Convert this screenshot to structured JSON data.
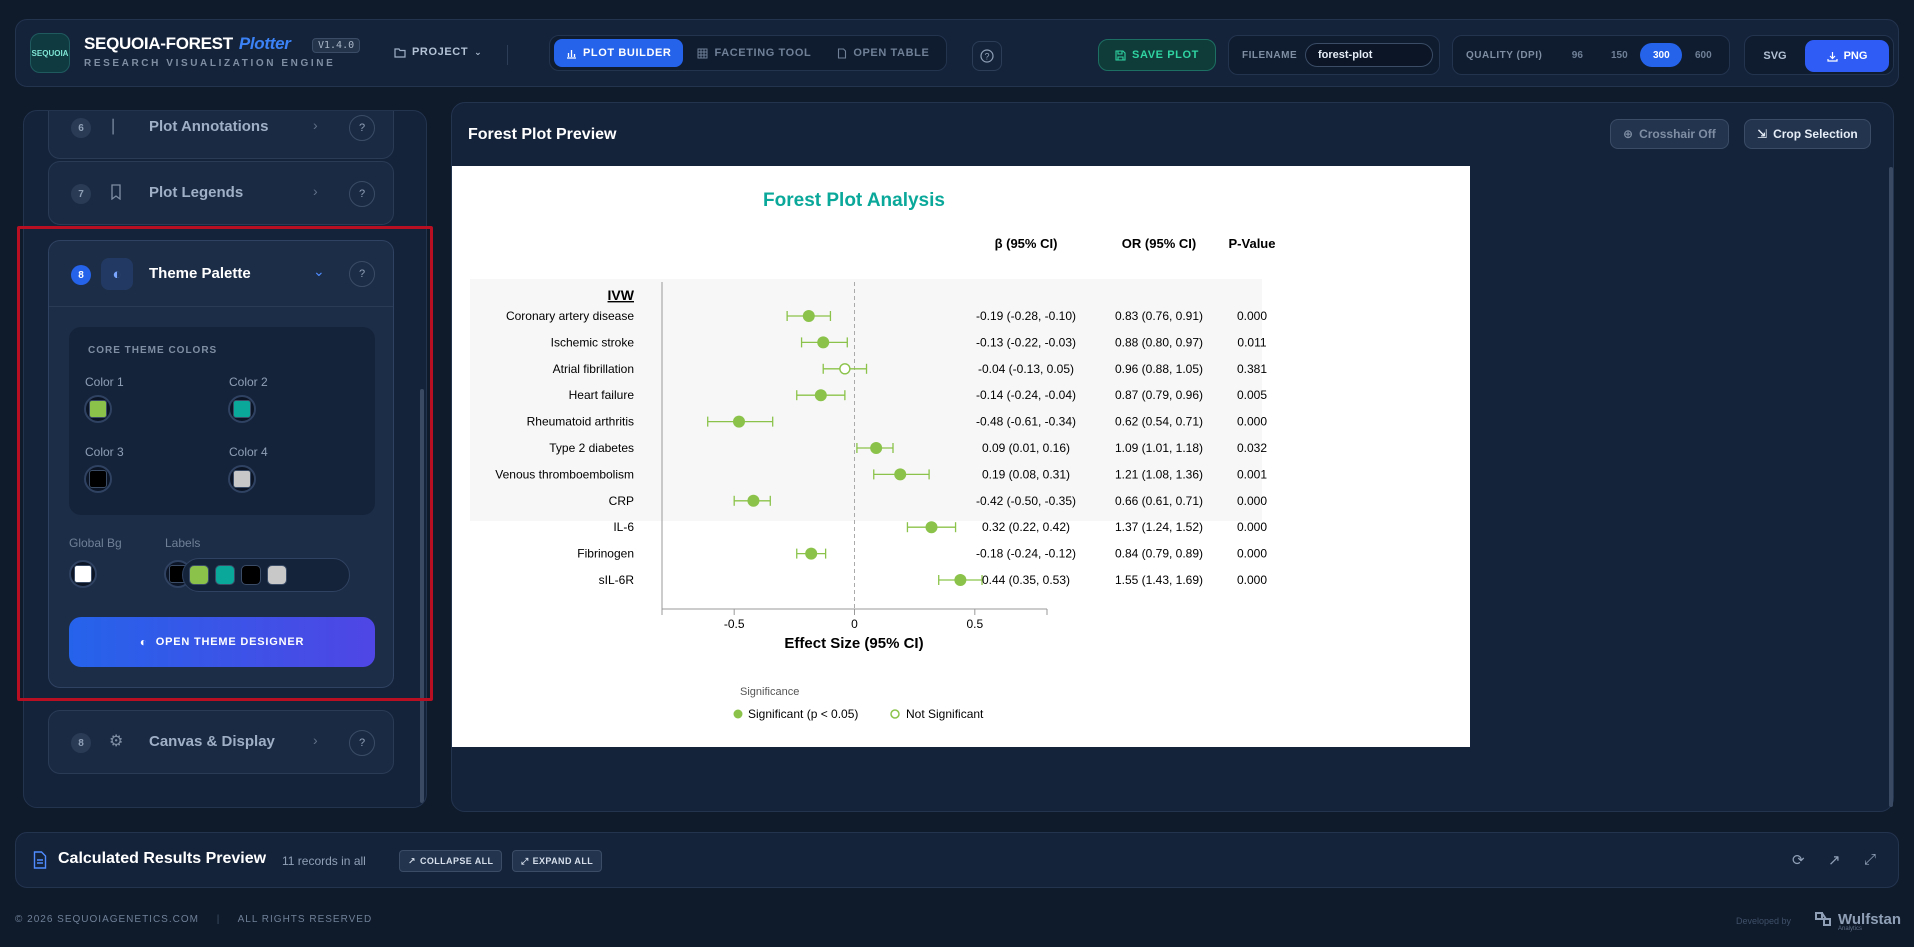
{
  "header": {
    "logo_text": "SEQUOIA",
    "brand": "SEQUOIA-FOREST",
    "brand_accent": "Plotter",
    "version": "V1.4.0",
    "subtitle": "RESEARCH VISUALIZATION ENGINE",
    "project_label": "PROJECT",
    "tabs": [
      {
        "label": "PLOT BUILDER",
        "icon": "bar-chart-icon",
        "active": true
      },
      {
        "label": "FACETING TOOL",
        "icon": "grid-icon",
        "active": false
      },
      {
        "label": "OPEN TABLE",
        "icon": "document-icon",
        "active": false
      }
    ],
    "save_label": "SAVE PLOT",
    "filename_label": "FILENAME",
    "filename_value": "forest-plot",
    "quality_label": "QUALITY (DPI)",
    "quality_options": [
      "96",
      "150",
      "300",
      "600"
    ],
    "quality_selected": "300",
    "format_svg": "SVG",
    "format_png": "PNG"
  },
  "sidebar": {
    "items": [
      {
        "number": "6",
        "label": "Plot Annotations"
      },
      {
        "number": "7",
        "label": "Plot Legends"
      },
      {
        "number": "8",
        "label": "Theme Palette"
      },
      {
        "number": "8",
        "label": "Canvas & Display"
      }
    ],
    "theme_palette": {
      "core_caption": "CORE THEME COLORS",
      "colors": [
        {
          "label": "Color 1",
          "value": "#8bc34a"
        },
        {
          "label": "Color 2",
          "value": "#0aa89a"
        },
        {
          "label": "Color 3",
          "value": "#000000"
        },
        {
          "label": "Color 4",
          "value": "#c8c8c8"
        }
      ],
      "global_bg_label": "Global Bg",
      "global_bg_value": "#ffffff",
      "labels_label": "Labels",
      "labels_value": "#000000",
      "open_designer_label": "OPEN THEME DESIGNER"
    }
  },
  "preview": {
    "title": "Forest Plot Preview",
    "crosshair_label": "Crosshair Off",
    "crop_label": "Crop Selection"
  },
  "chart_data": {
    "type": "scatter",
    "title": "Forest Plot Analysis",
    "group_label": "IVW",
    "xlabel": "Effect Size (95% CI)",
    "xticks": [
      -0.5,
      0,
      0.5
    ],
    "xtick_labels": [
      "-0.5",
      "0",
      "0.5"
    ],
    "xlim": [
      -0.8,
      0.8
    ],
    "reference_line": 0,
    "column_headers": {
      "beta": "β (95% CI)",
      "or": "OR (95% CI)",
      "p": "P-Value"
    },
    "legend_title": "Significance",
    "legend": [
      {
        "label": "Significant (p < 0.05)",
        "filled": true
      },
      {
        "label": "Not Significant",
        "filled": false
      }
    ],
    "marker_color": "#8bc34a",
    "title_color": "#0aa89a",
    "rows": [
      {
        "label": "Coronary artery disease",
        "beta": -0.19,
        "lo": -0.28,
        "hi": -0.1,
        "beta_text": "-0.19 (-0.28, -0.10)",
        "or_text": "0.83 (0.76, 0.91)",
        "p_text": "0.000",
        "significant": true
      },
      {
        "label": "Ischemic stroke",
        "beta": -0.13,
        "lo": -0.22,
        "hi": -0.03,
        "beta_text": "-0.13 (-0.22, -0.03)",
        "or_text": "0.88 (0.80, 0.97)",
        "p_text": "0.011",
        "significant": true
      },
      {
        "label": "Atrial fibrillation",
        "beta": -0.04,
        "lo": -0.13,
        "hi": 0.05,
        "beta_text": "-0.04 (-0.13, 0.05)",
        "or_text": "0.96 (0.88, 1.05)",
        "p_text": "0.381",
        "significant": false
      },
      {
        "label": "Heart failure",
        "beta": -0.14,
        "lo": -0.24,
        "hi": -0.04,
        "beta_text": "-0.14 (-0.24, -0.04)",
        "or_text": "0.87 (0.79, 0.96)",
        "p_text": "0.005",
        "significant": true
      },
      {
        "label": "Rheumatoid arthritis",
        "beta": -0.48,
        "lo": -0.61,
        "hi": -0.34,
        "beta_text": "-0.48 (-0.61, -0.34)",
        "or_text": "0.62 (0.54, 0.71)",
        "p_text": "0.000",
        "significant": true
      },
      {
        "label": "Type 2 diabetes",
        "beta": 0.09,
        "lo": 0.01,
        "hi": 0.16,
        "beta_text": "0.09 (0.01, 0.16)",
        "or_text": "1.09 (1.01, 1.18)",
        "p_text": "0.032",
        "significant": true
      },
      {
        "label": "Venous thromboembolism",
        "beta": 0.19,
        "lo": 0.08,
        "hi": 0.31,
        "beta_text": "0.19 (0.08, 0.31)",
        "or_text": "1.21 (1.08, 1.36)",
        "p_text": "0.001",
        "significant": true
      },
      {
        "label": "CRP",
        "beta": -0.42,
        "lo": -0.5,
        "hi": -0.35,
        "beta_text": "-0.42 (-0.50, -0.35)",
        "or_text": "0.66 (0.61, 0.71)",
        "p_text": "0.000",
        "significant": true
      },
      {
        "label": "IL-6",
        "beta": 0.32,
        "lo": 0.22,
        "hi": 0.42,
        "beta_text": "0.32 (0.22, 0.42)",
        "or_text": "1.37 (1.24, 1.52)",
        "p_text": "0.000",
        "significant": true
      },
      {
        "label": "Fibrinogen",
        "beta": -0.18,
        "lo": -0.24,
        "hi": -0.12,
        "beta_text": "-0.18 (-0.24, -0.12)",
        "or_text": "0.84 (0.79, 0.89)",
        "p_text": "0.000",
        "significant": true
      },
      {
        "label": "sIL-6R",
        "beta": 0.44,
        "lo": 0.35,
        "hi": 0.53,
        "beta_text": "0.44 (0.35, 0.53)",
        "or_text": "1.55 (1.43, 1.69)",
        "p_text": "0.000",
        "significant": true
      }
    ]
  },
  "results": {
    "title": "Calculated Results Preview",
    "count": "11 records in all",
    "collapse_label": "COLLAPSE ALL",
    "expand_label": "EXPAND ALL"
  },
  "footer": {
    "copyright": "© 2026 SEQUOIAGENETICS.COM",
    "rights": "ALL RIGHTS RESERVED",
    "developed_by": "Developed by",
    "dev_name": "Wulfstan",
    "dev_sub": "Analytics"
  }
}
